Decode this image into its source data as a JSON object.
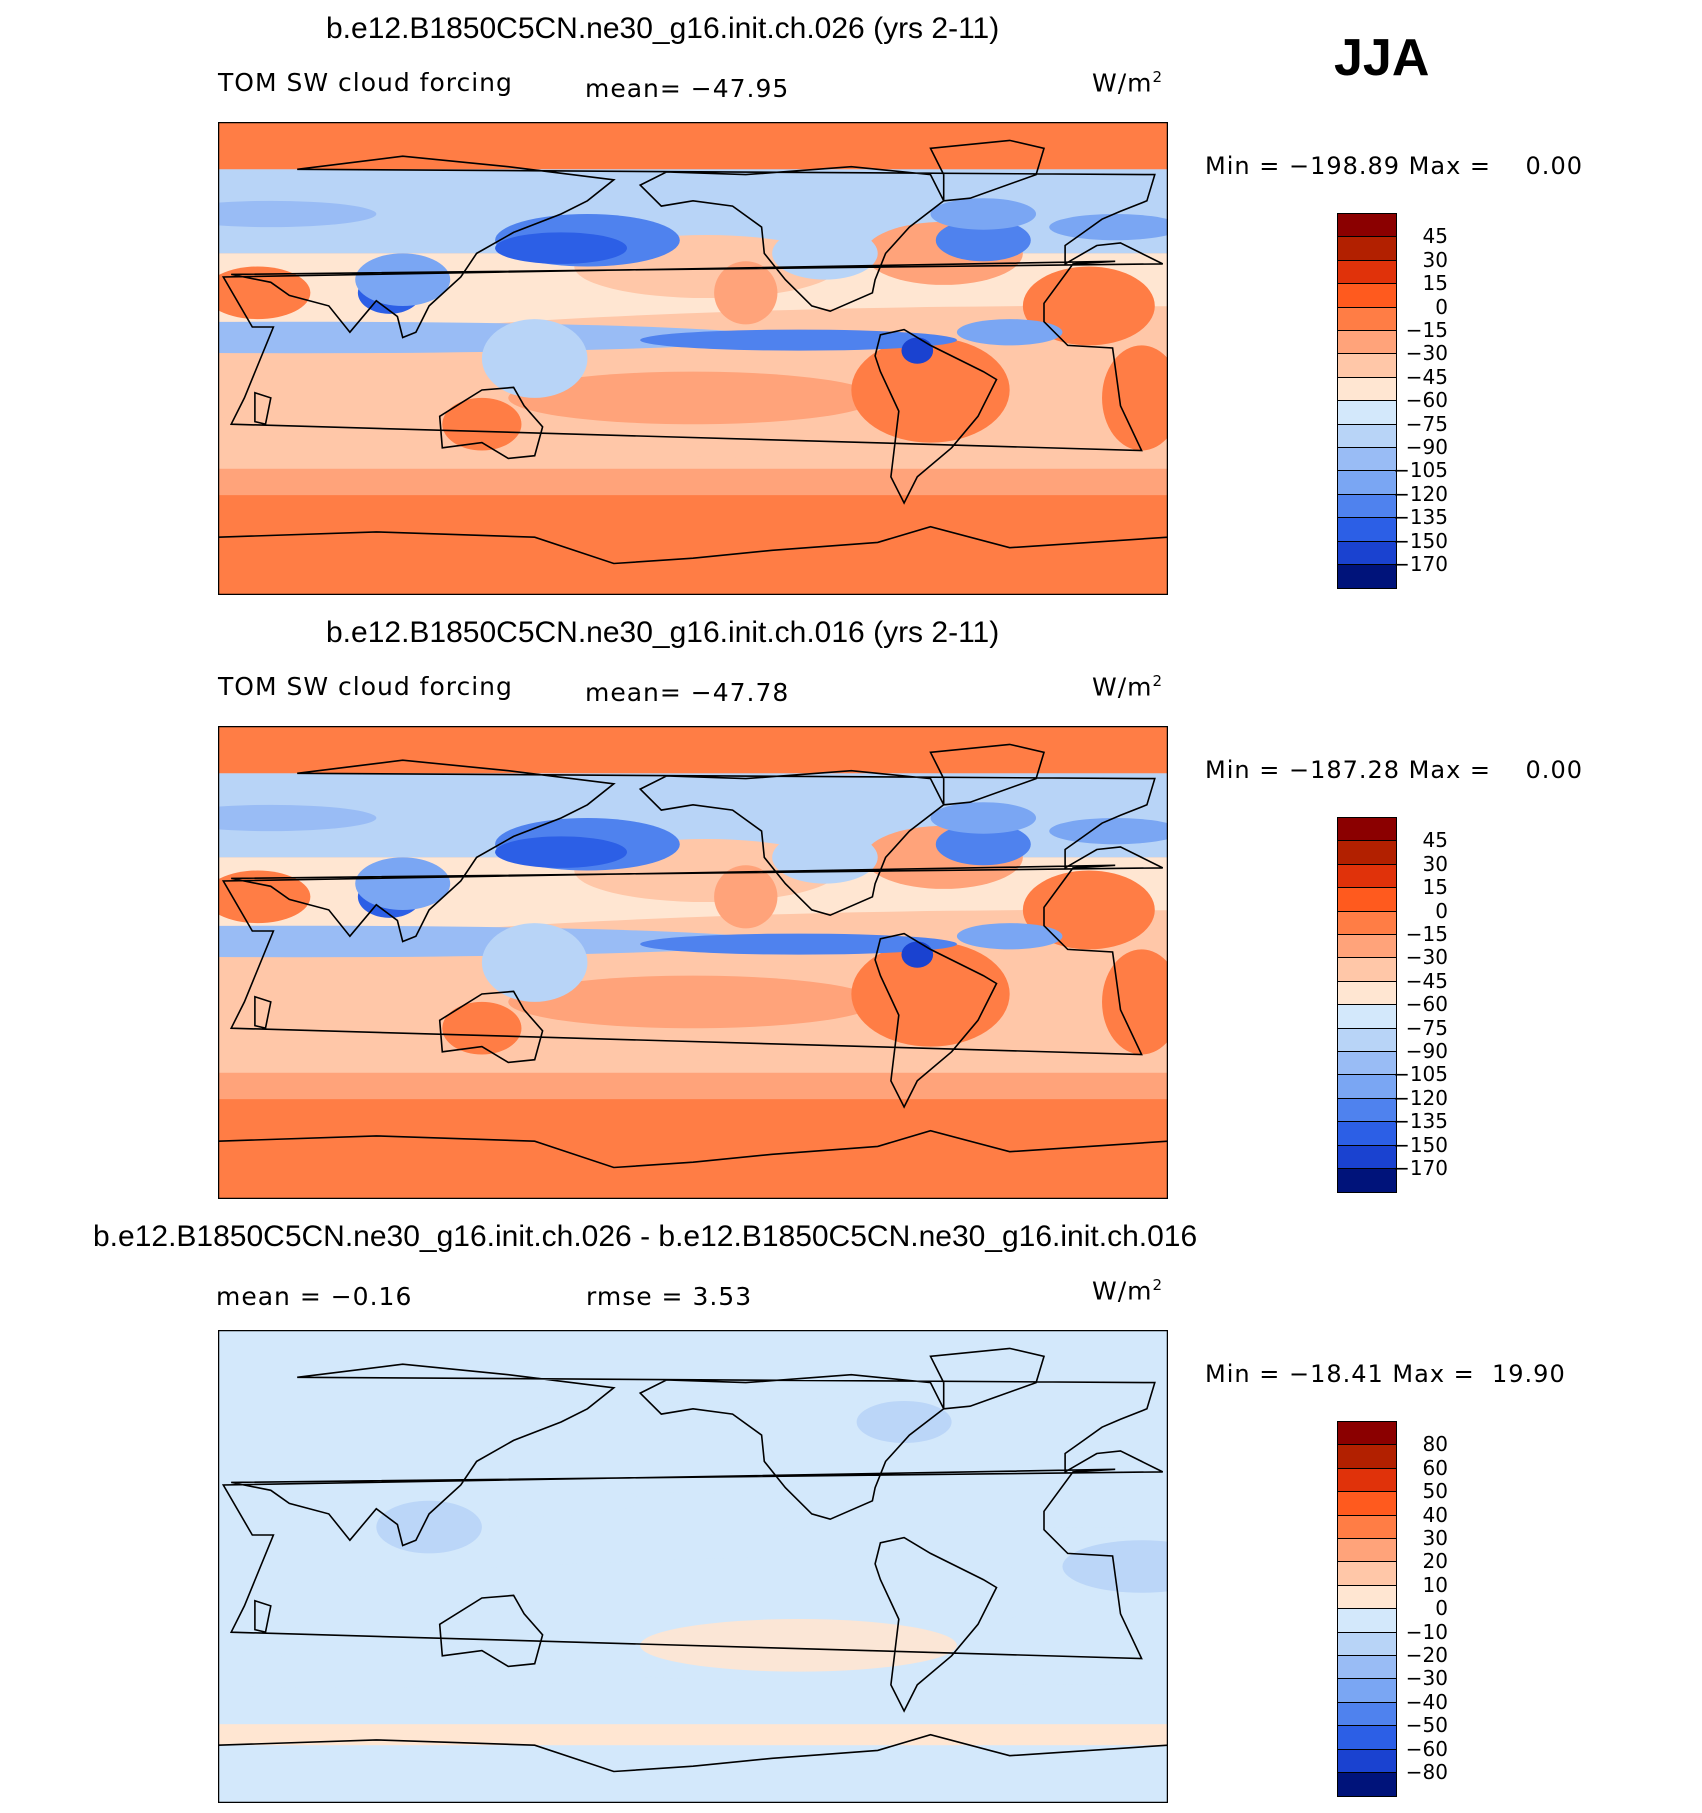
{
  "season": "JJA",
  "colors": {
    "land_outline": "#000000",
    "warm": [
      "#8b0000",
      "#b22000",
      "#e0320a",
      "#ff5a1e",
      "#ff7d45",
      "#ffa37a",
      "#ffc7a8",
      "#ffe6d2"
    ],
    "cool": [
      "#d3e8fb",
      "#b8d4f7",
      "#99bcf5",
      "#7aa6f3",
      "#4f82ee",
      "#2c5fe6",
      "#1a42d0",
      "#0c28a8",
      "#00137a"
    ]
  },
  "panels": [
    {
      "case_title": "b.e12.B1850C5CN.ne30_g16.init.ch.026 (yrs 2-11)",
      "left_label": "TOM SW cloud forcing",
      "center_label": "mean= −47.95",
      "units_base": "W/m",
      "units_exp": "2",
      "minmax": "Min = −198.89 Max =    0.00",
      "colorbar_ticks": [
        "45",
        "30",
        "15",
        "0",
        "−15",
        "−30",
        "−45",
        "−60",
        "−75",
        "−90",
        "−105",
        "−120",
        "−135",
        "−150",
        "−170"
      ],
      "colorbar_colors": [
        "#8b0000",
        "#b22000",
        "#e0320a",
        "#ff5a1e",
        "#ff7d45",
        "#ffa37a",
        "#ffc7a8",
        "#ffe6d2",
        "#d3e8fb",
        "#b8d4f7",
        "#99bcf5",
        "#7aa6f3",
        "#4f82ee",
        "#2c5fe6",
        "#1a42d0",
        "#00137a"
      ],
      "map_style": "field"
    },
    {
      "case_title": "b.e12.B1850C5CN.ne30_g16.init.ch.016 (yrs 2-11)",
      "left_label": "TOM SW cloud forcing",
      "center_label": "mean= −47.78",
      "units_base": "W/m",
      "units_exp": "2",
      "minmax": "Min = −187.28 Max =    0.00",
      "colorbar_ticks": [
        "45",
        "30",
        "15",
        "0",
        "−15",
        "−30",
        "−45",
        "−60",
        "−75",
        "−90",
        "−105",
        "−120",
        "−135",
        "−150",
        "−170"
      ],
      "colorbar_colors": [
        "#8b0000",
        "#b22000",
        "#e0320a",
        "#ff5a1e",
        "#ff7d45",
        "#ffa37a",
        "#ffc7a8",
        "#ffe6d2",
        "#d3e8fb",
        "#b8d4f7",
        "#99bcf5",
        "#7aa6f3",
        "#4f82ee",
        "#2c5fe6",
        "#1a42d0",
        "#00137a"
      ],
      "map_style": "field"
    },
    {
      "case_title": "b.e12.B1850C5CN.ne30_g16.init.ch.026 - b.e12.B1850C5CN.ne30_g16.init.ch.016",
      "left_label": "mean =   −0.16",
      "center_label": "rmse =     3.53",
      "units_base": "W/m",
      "units_exp": "2",
      "minmax": "Min = −18.41 Max =  19.90",
      "colorbar_ticks": [
        "80",
        "60",
        "50",
        "40",
        "30",
        "20",
        "10",
        "0",
        "−10",
        "−20",
        "−30",
        "−40",
        "−50",
        "−60",
        "−80"
      ],
      "colorbar_colors": [
        "#8b0000",
        "#b22000",
        "#e0320a",
        "#ff5a1e",
        "#ff7d45",
        "#ffa37a",
        "#ffc7a8",
        "#ffe6d2",
        "#d3e8fb",
        "#b8d4f7",
        "#99bcf5",
        "#7aa6f3",
        "#4f82ee",
        "#2c5fe6",
        "#1a42d0",
        "#00137a"
      ],
      "map_style": "diff"
    }
  ]
}
